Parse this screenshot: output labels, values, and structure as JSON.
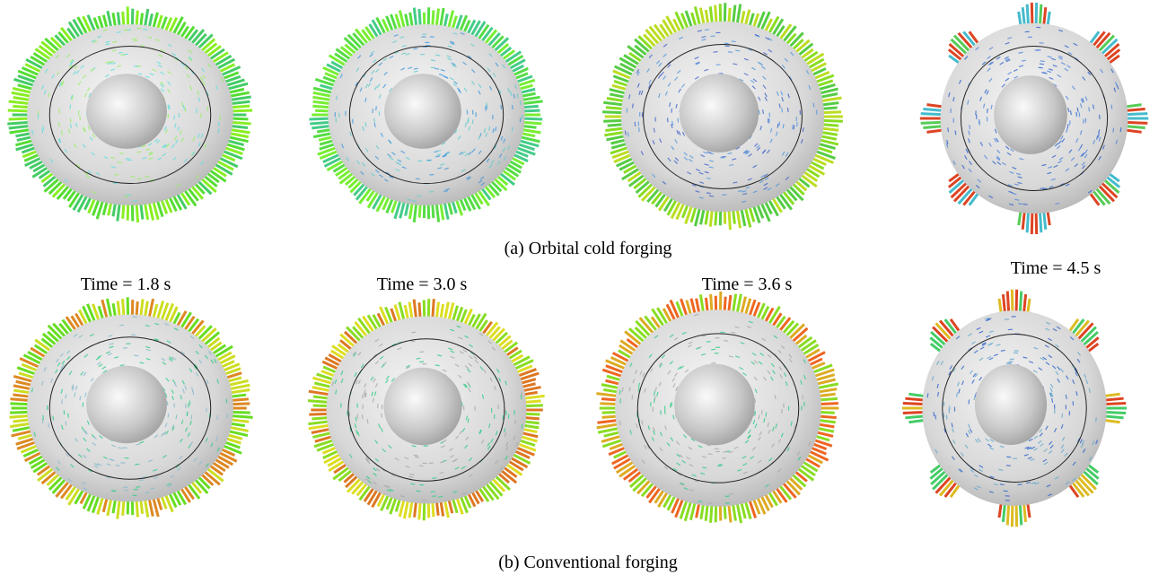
{
  "row_a": {
    "caption": "(a) Orbital cold forging"
  },
  "row_b": {
    "caption": "(b) Conventional forging"
  },
  "times": [
    "Time = 1.8 s",
    "Time = 3.0 s",
    "Time = 3.6 s",
    "Time = 4.5 s"
  ]
}
